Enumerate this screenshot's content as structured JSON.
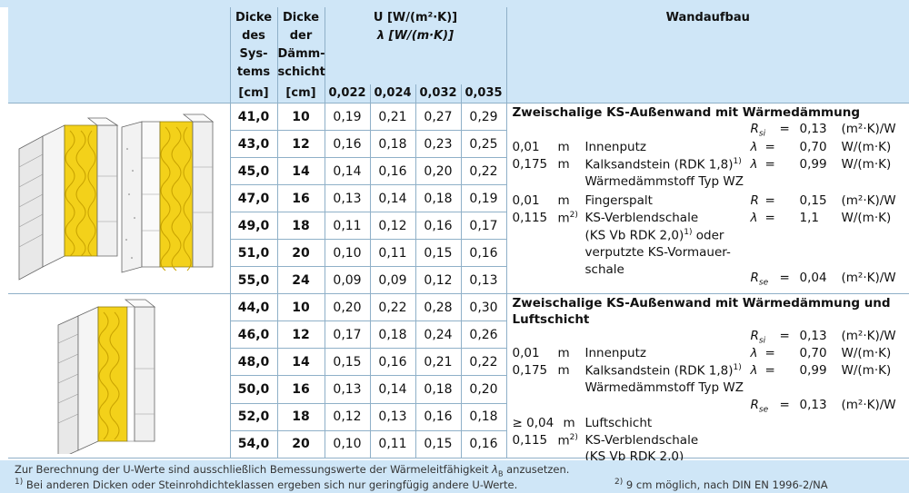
{
  "header": {
    "dicke_systems": [
      "Dicke",
      "des",
      "Sys-",
      "tems"
    ],
    "dicke_daemm": [
      "Dicke",
      "der",
      "Dämm-",
      "schicht"
    ],
    "unit_cm": "[cm]",
    "u_label": "U [W/(m²·K)]",
    "lambda_label": "λ [W/(m·K)]",
    "lambda_values": [
      "0,022",
      "0,024",
      "0,032",
      "0,035"
    ],
    "wandaufbau": "Wandaufbau"
  },
  "section1": {
    "rows": [
      {
        "d1": "41,0",
        "d2": "10",
        "u": [
          "0,19",
          "0,21",
          "0,27",
          "0,29"
        ]
      },
      {
        "d1": "43,0",
        "d2": "12",
        "u": [
          "0,16",
          "0,18",
          "0,23",
          "0,25"
        ]
      },
      {
        "d1": "45,0",
        "d2": "14",
        "u": [
          "0,14",
          "0,16",
          "0,20",
          "0,22"
        ]
      },
      {
        "d1": "47,0",
        "d2": "16",
        "u": [
          "0,13",
          "0,14",
          "0,18",
          "0,19"
        ]
      },
      {
        "d1": "49,0",
        "d2": "18",
        "u": [
          "0,11",
          "0,12",
          "0,16",
          "0,17"
        ]
      },
      {
        "d1": "51,0",
        "d2": "20",
        "u": [
          "0,10",
          "0,11",
          "0,15",
          "0,16"
        ]
      },
      {
        "d1": "55,0",
        "d2": "24",
        "u": [
          "0,09",
          "0,09",
          "0,12",
          "0,13"
        ]
      }
    ],
    "title": "Zweischalige KS-Außenwand mit Wärmedämmung",
    "rsi_label": "R",
    "rsi_sub": "si",
    "rsi_eq": "=",
    "rsi_value": "0,13",
    "rsi_unit": "(m²·K)/W",
    "layers": [
      {
        "thick": "0,01",
        "unit": "m",
        "name": "Innenputz",
        "sym": "λ",
        "eq": "=",
        "val": "0,70",
        "vunit": "W/(m·K)"
      },
      {
        "thick": "0,175",
        "unit": "m",
        "name": "Kalksandstein (RDK 1,8)",
        "name_sup": "1)",
        "sym": "λ",
        "eq": "=",
        "val": "0,99",
        "vunit": "W/(m·K)"
      },
      {
        "name": "Wärmedämmstoff Typ WZ"
      },
      {
        "thick": "0,01",
        "unit": "m",
        "name": "Fingerspalt",
        "sym": "R",
        "eq": "=",
        "val": "0,15",
        "vunit": "(m²·K)/W"
      },
      {
        "thick": "0,115",
        "unit": "m",
        "unit_sup": "2)",
        "name": "KS-Verblendschale",
        "sym": "λ",
        "eq": "=",
        "val": "1,1",
        "vunit": "W/(m·K)"
      },
      {
        "name": "(KS Vb RDK 2,0)",
        "name_sup": "1)",
        "name_tail": " oder"
      },
      {
        "name": "verputzte KS-Vormauer-"
      },
      {
        "name": "schale"
      }
    ],
    "rse_label": "R",
    "rse_sub": "se",
    "rse_eq": "=",
    "rse_value": "0,04",
    "rse_unit": "(m²·K)/W"
  },
  "section2": {
    "rows": [
      {
        "d1": "44,0",
        "d2": "10",
        "u": [
          "0,20",
          "0,22",
          "0,28",
          "0,30"
        ]
      },
      {
        "d1": "46,0",
        "d2": "12",
        "u": [
          "0,17",
          "0,18",
          "0,24",
          "0,26"
        ]
      },
      {
        "d1": "48,0",
        "d2": "14",
        "u": [
          "0,15",
          "0,16",
          "0,21",
          "0,22"
        ]
      },
      {
        "d1": "50,0",
        "d2": "16",
        "u": [
          "0,13",
          "0,14",
          "0,18",
          "0,20"
        ]
      },
      {
        "d1": "52,0",
        "d2": "18",
        "u": [
          "0,12",
          "0,13",
          "0,16",
          "0,18"
        ]
      },
      {
        "d1": "54,0",
        "d2": "20",
        "u": [
          "0,10",
          "0,11",
          "0,15",
          "0,16"
        ]
      }
    ],
    "title_line1": "Zweischalige KS-Außenwand mit Wärmedämmung und",
    "title_line2": "Luftschicht",
    "rsi_label": "R",
    "rsi_sub": "si",
    "rsi_eq": "=",
    "rsi_value": "0,13",
    "rsi_unit": "(m²·K)/W",
    "layers": [
      {
        "thick": "0,01",
        "unit": "m",
        "name": "Innenputz",
        "sym": "λ",
        "eq": "=",
        "val": "0,70",
        "vunit": "W/(m·K)"
      },
      {
        "thick": "0,175",
        "unit": "m",
        "name": "Kalksandstein (RDK 1,8)",
        "name_sup": "1)",
        "sym": "λ",
        "eq": "=",
        "val": "0,99",
        "vunit": "W/(m·K)"
      },
      {
        "name": "Wärmedämmstoff Typ WZ"
      }
    ],
    "rse_label": "R",
    "rse_sub": "se",
    "rse_eq": "=",
    "rse_value": "0,13",
    "rse_unit": "(m²·K)/W",
    "layers2": [
      {
        "thick": "≥ 0,04",
        "unit": "m",
        "name": "Luftschicht"
      },
      {
        "thick": "0,115",
        "unit": "m",
        "unit_sup": "2)",
        "name": "KS-Verblendschale"
      },
      {
        "name": "(KS Vb RDK 2,0)"
      }
    ]
  },
  "footer": {
    "line1": "Zur Berechnung der U-Werte sind ausschließlich Bemessungswerte der Wärmeleitfähigkeit",
    "line1_sym": "λ",
    "line1_sub": "B",
    "line1_tail": " anzusetzen.",
    "fn1_mark": "1)",
    "fn1": " Bei anderen Dicken oder Steinrohdichteklassen ergeben sich nur geringfügig andere U-Werte.",
    "fn2_mark": "2)",
    "fn2": " 9 cm möglich, nach DIN EN 1996-2/NA"
  },
  "colors": {
    "header_bg": "#cfe6f7",
    "border": "#8fb0c8",
    "insulation": "#f3d11a"
  }
}
